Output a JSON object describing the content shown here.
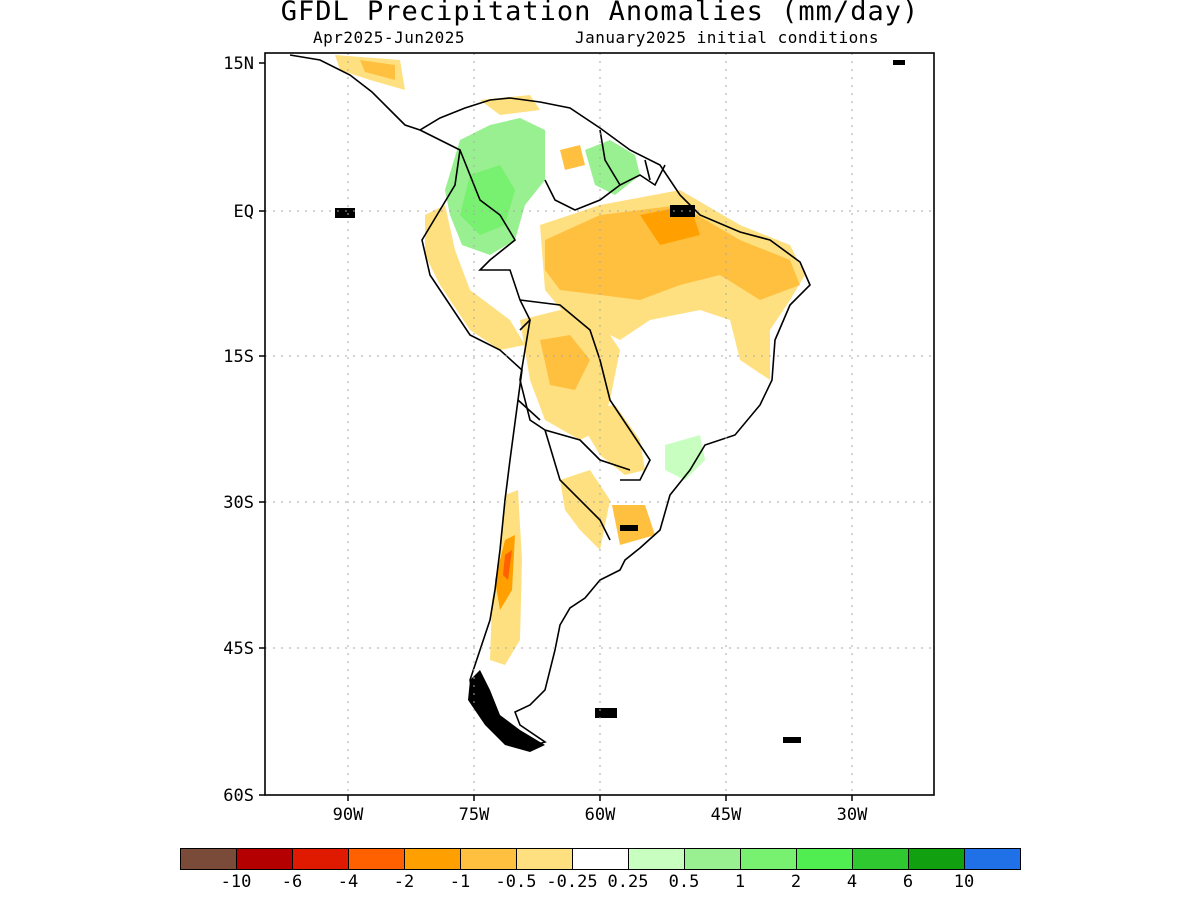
{
  "title": "GFDL Precipitation Anomalies (mm/day)",
  "period": "Apr2025-Jun2025",
  "init": "January2025 initial conditions",
  "lat_labels": [
    "15N",
    "EQ",
    "15S",
    "30S",
    "45S",
    "60S"
  ],
  "lon_labels": [
    "90W",
    "75W",
    "60W",
    "45W",
    "30W"
  ],
  "colorbar": {
    "colors": [
      "#7b4b3a",
      "#b40000",
      "#e01a00",
      "#ff6000",
      "#ffa000",
      "#ffc040",
      "#ffe080",
      "#ffffff",
      "#c8ffc0",
      "#98f090",
      "#78f070",
      "#50ee50",
      "#30c830",
      "#10a010",
      "#2070e8"
    ],
    "labels": [
      "-10",
      "-6",
      "-4",
      "-2",
      "-1",
      "-0.5",
      "-0.25",
      "0.25",
      "0.5",
      "1",
      "2",
      "4",
      "6",
      "10"
    ]
  },
  "colors": {
    "land_outline": "#000000",
    "grid": "#aaaaaa"
  }
}
